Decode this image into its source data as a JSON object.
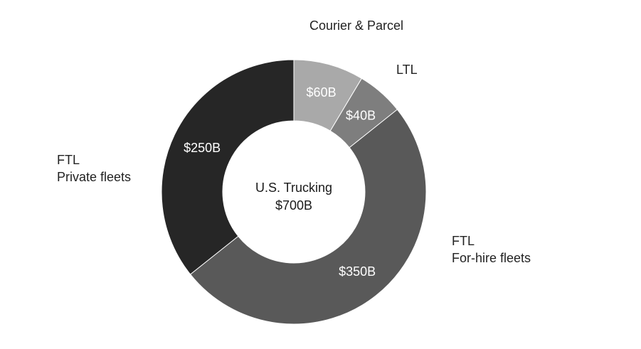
{
  "chart_data": {
    "type": "pie",
    "donut": true,
    "center_label": [
      "U.S. Trucking",
      "$700B"
    ],
    "start_angle_deg": 0,
    "direction": "clockwise",
    "slices": [
      {
        "label": [
          "Courier & Parcel"
        ],
        "value": 60,
        "value_label": "$60B",
        "color": "#a9a9a9"
      },
      {
        "label": [
          "LTL"
        ],
        "value": 40,
        "value_label": "$40B",
        "color": "#7e7e7e"
      },
      {
        "label": [
          "FTL",
          "For-hire fleets"
        ],
        "value": 350,
        "value_label": "$350B",
        "color": "#595959"
      },
      {
        "label": [
          "FTL",
          "Private fleets"
        ],
        "value": 250,
        "value_label": "$250B",
        "color": "#262626"
      }
    ]
  }
}
